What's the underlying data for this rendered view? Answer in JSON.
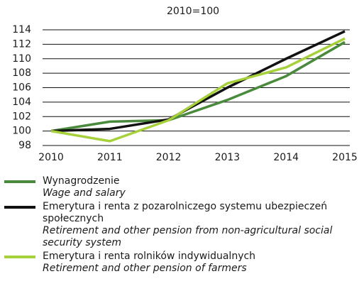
{
  "chart_data": {
    "type": "line",
    "title": "2010=100",
    "categories": [
      "2010",
      "2011",
      "2012",
      "2013",
      "2014",
      "2015"
    ],
    "series": [
      {
        "name": "Wynagrodzenie",
        "name_en": "Wage and salary",
        "color": "#4a8a3c",
        "values": [
          100,
          101.3,
          101.5,
          104.3,
          107.6,
          112.3
        ]
      },
      {
        "name": "Emerytura i renta z pozarolniczego systemu ubezpieczeń społecznych",
        "name_en": "Retirement and other pension from non-agricultural social security system",
        "color": "#111111",
        "values": [
          100,
          100.3,
          101.6,
          106.0,
          110.0,
          113.8
        ]
      },
      {
        "name": "Emerytura i renta rolników indywidualnych",
        "name_en": "Retirement and other pension of farmers",
        "color": "#a6d13a",
        "values": [
          100,
          98.6,
          101.5,
          106.6,
          108.8,
          112.8
        ]
      }
    ],
    "ylim": [
      98,
      114
    ],
    "yticks": [
      98,
      100,
      102,
      104,
      106,
      108,
      110,
      112,
      114
    ],
    "grid": true
  }
}
